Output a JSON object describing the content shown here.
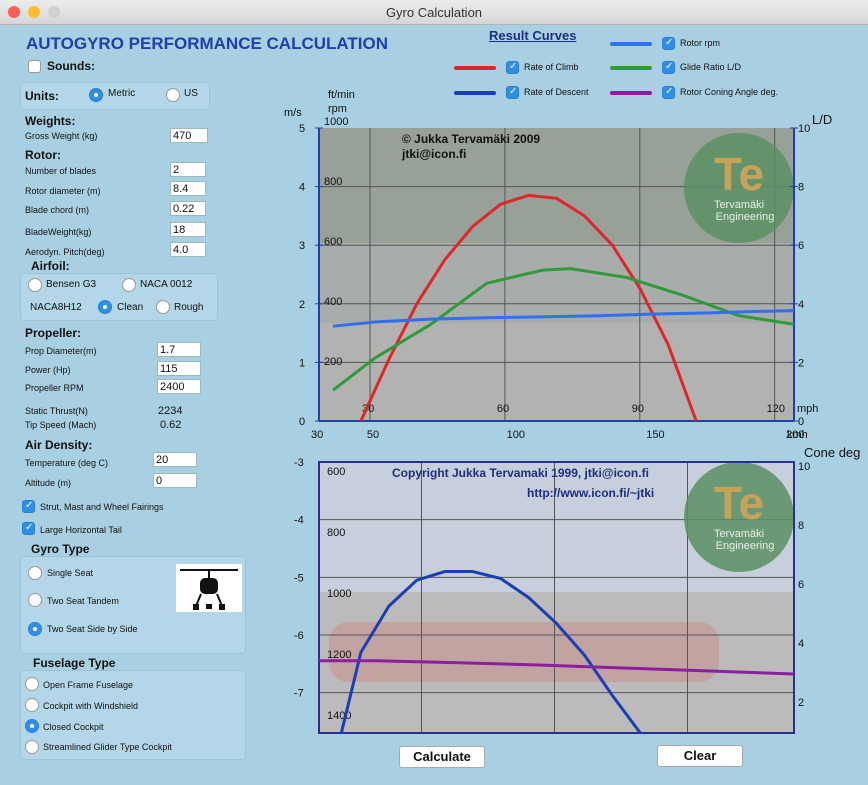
{
  "window": {
    "title": "Gyro Calculation"
  },
  "app": {
    "title": "AUTOGYRO PERFORMANCE CALCULATION",
    "sounds_label": "Sounds:"
  },
  "units": {
    "label": "Units:",
    "metric": "Metric",
    "us": "US",
    "selected": "Metric"
  },
  "weights": {
    "header": "Weights:",
    "gross_label": "Gross Weight (kg)",
    "gross_value": "470"
  },
  "rotor": {
    "header": "Rotor:",
    "blades_label": "Number of blades",
    "blades_value": "2",
    "diameter_label": "Rotor diameter (m)",
    "diameter_value": "8.4",
    "chord_label": "Blade chord (m)",
    "chord_value": "0.22",
    "weight_label": "BladeWeight(kg)",
    "weight_value": "18",
    "pitch_label": "Aerodyn. Pitch(deg)",
    "pitch_value": "4.0"
  },
  "airfoil": {
    "header": "Airfoil:",
    "bensen": "Bensen G3",
    "naca0012": "NACA 0012",
    "naca8h12": "NACA8H12",
    "clean": "Clean",
    "rough": "Rough",
    "selected": "Clean"
  },
  "propeller": {
    "header": "Propeller:",
    "diameter_label": "Prop Diameter(m)",
    "diameter_value": "1.7",
    "power_label": "Power (Hp)",
    "power_value": "115",
    "rpm_label": "Propeller  RPM",
    "rpm_value": "2400",
    "thrust_label": "Static Thrust(N)",
    "thrust_value": "2234",
    "tip_label": "Tip  Speed (Mach)",
    "tip_value": "0.62"
  },
  "air": {
    "header": "Air Density:",
    "temp_label": "Temperature  (deg  C)",
    "temp_value": "20",
    "alt_label": "Altitude    (m)",
    "alt_value": "0"
  },
  "options": {
    "fairings": "Strut, Mast and Wheel Fairings",
    "tail": "Large Horizontal Tail"
  },
  "gyro_type": {
    "header": "Gyro Type",
    "single": "Single Seat",
    "tandem": "Two Seat Tandem",
    "side": "Two Seat Side by Side",
    "selected": "Two Seat Side by Side"
  },
  "fuselage": {
    "header": "Fuselage Type",
    "open": "Open Frame Fuselage",
    "windshield": "Cockpit with Windshield",
    "closed": "Closed Cockpit",
    "glider": "Streamlined Glider Type Cockpit",
    "selected": "Closed Cockpit"
  },
  "legend": {
    "title": "Result Curves",
    "items": [
      {
        "label": "Rate of Climb",
        "color": "#e0262a",
        "checked": true
      },
      {
        "label": "Rate of Descent",
        "color": "#1a3fb5",
        "checked": true
      },
      {
        "label": "Rotor rpm",
        "color": "#2f6ff0",
        "checked": true
      },
      {
        "label": "Glide Ratio L/D",
        "color": "#2e9a3a",
        "checked": true
      },
      {
        "label": "Rotor Coning Angle deg.",
        "color": "#8a1fa0",
        "checked": true
      }
    ]
  },
  "buttons": {
    "calculate": "Calculate",
    "clear": "Clear"
  },
  "chart_top": {
    "unit_ms": "m/s",
    "unit_ftmin": "ft/min",
    "unit_rpm": "rpm",
    "unit_ld": "L/D",
    "unit_mph": "mph",
    "unit_kmh": "kmh",
    "copyright": "© Jukka Tervamäki 2009",
    "email": "jtki@icon.fi",
    "logo_letters": "Te",
    "logo_name": "Tervamäki",
    "logo_sub": "Engineering"
  },
  "chart_bottom": {
    "unit_cone": "Cone  deg",
    "copyright": "Copyright Jukka Tervamaki  1999, jtki@icon.fi",
    "url": "http://www.icon.fi/~jtki",
    "logo_letters": "Te",
    "logo_name": "Tervamäki",
    "logo_sub": "Engineering"
  },
  "chart_data": [
    {
      "type": "line",
      "x_kmh": {
        "range": [
          30,
          200
        ],
        "ticks": [
          "30",
          "50",
          "100",
          "150",
          "200"
        ]
      },
      "x_mph": {
        "ticks": [
          "30",
          "60",
          "90",
          "120"
        ]
      },
      "y_left_ms": {
        "range": [
          0,
          5
        ],
        "ticks": [
          "0",
          "1",
          "2",
          "3",
          "4",
          "5"
        ]
      },
      "y_left_ftmin_rpm": {
        "ticks": [
          "200",
          "400",
          "600",
          "800",
          "1000"
        ]
      },
      "y_right_ld": {
        "ticks": [
          "0",
          "2",
          "4",
          "6",
          "8",
          "10"
        ]
      },
      "grid": true,
      "series": [
        {
          "name": "Rate of Climb",
          "color": "#e0262a",
          "x": [
            45,
            55,
            65,
            75,
            85,
            95,
            105,
            115,
            125,
            135,
            145,
            155,
            165
          ],
          "y": [
            0.0,
            1.05,
            2.0,
            2.75,
            3.32,
            3.7,
            3.85,
            3.8,
            3.5,
            3.0,
            2.25,
            1.3,
            0.0
          ]
        },
        {
          "name": "Glide Ratio L/D",
          "color": "#2e9a3a",
          "x": [
            35,
            50,
            70,
            90,
            110,
            120,
            140,
            160,
            180,
            200
          ],
          "y": [
            1.05,
            2.15,
            3.3,
            4.7,
            5.15,
            5.2,
            4.9,
            4.3,
            3.6,
            3.3
          ]
        },
        {
          "name": "Rotor rpm",
          "color": "#2f6ff0",
          "x": [
            35,
            50,
            70,
            90,
            110,
            130,
            150,
            170,
            190,
            200
          ],
          "y": [
            335,
            350,
            360,
            365,
            368,
            372,
            378,
            382,
            388,
            390
          ]
        }
      ]
    },
    {
      "type": "line",
      "y_left_ms": {
        "range": [
          -3,
          -7.5
        ],
        "ticks": [
          "-3",
          "-4",
          "-5",
          "-6",
          "-7"
        ]
      },
      "y_left_ftmin": {
        "ticks": [
          "600",
          "800",
          "1000",
          "1200",
          "1400"
        ]
      },
      "y_right_cone": {
        "ticks": [
          "2",
          "4",
          "6",
          "8",
          "10"
        ]
      },
      "grid": true,
      "series": [
        {
          "name": "Rate of Descent",
          "color": "#1a3fb5",
          "x": [
            38,
            45,
            55,
            65,
            75,
            85,
            95,
            105,
            115,
            125,
            135,
            145
          ],
          "y": [
            -7.7,
            -6.3,
            -5.5,
            -5.05,
            -4.9,
            -4.9,
            -5.02,
            -5.35,
            -5.8,
            -6.35,
            -7.05,
            -7.7
          ]
        },
        {
          "name": "Rotor Coning Angle deg.",
          "color": "#8a1fa0",
          "x": [
            30,
            50,
            80,
            110,
            140,
            170,
            200
          ],
          "y": [
            3.4,
            3.4,
            3.33,
            3.25,
            3.15,
            3.05,
            2.95
          ]
        }
      ]
    }
  ]
}
